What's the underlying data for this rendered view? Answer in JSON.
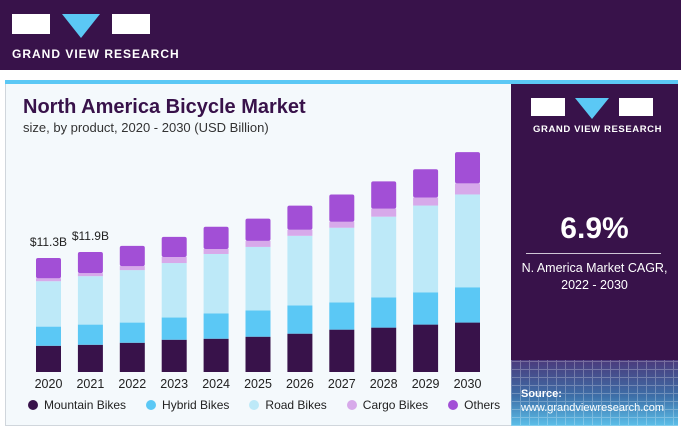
{
  "brand": {
    "name": "GRAND VIEW RESEARCH"
  },
  "header": {
    "title": "North America Bicycle Market",
    "subtitle": "size, by product, 2020 - 2030 (USD Billion)"
  },
  "sidebar": {
    "cagr_value": "6.9%",
    "cagr_label_line1": "N. America Market CAGR,",
    "cagr_label_line2": "2022 - 2030",
    "source_label": "Source:",
    "source_url": "www.grandviewresearch.com"
  },
  "colors": {
    "brand_dark": "#38124a",
    "accent_blue": "#5bc8f5"
  },
  "chart_data": {
    "type": "bar",
    "stacked": true,
    "title": "North America Bicycle Market",
    "subtitle": "size, by product, 2020 - 2030 (USD Billion)",
    "xlabel": "",
    "ylabel": "USD Billion",
    "ylim": [
      0,
      23
    ],
    "grid": false,
    "legend_position": "bottom",
    "categories": [
      "2020",
      "2021",
      "2022",
      "2023",
      "2024",
      "2025",
      "2026",
      "2027",
      "2028",
      "2029",
      "2030"
    ],
    "series": [
      {
        "name": "Mountain Bikes",
        "color": "#38124a",
        "values": [
          2.6,
          2.7,
          2.9,
          3.2,
          3.3,
          3.5,
          3.8,
          4.2,
          4.4,
          4.7,
          4.9
        ]
      },
      {
        "name": "Hybrid Bikes",
        "color": "#5bc8f5",
        "values": [
          1.9,
          2.0,
          2.0,
          2.2,
          2.5,
          2.6,
          2.8,
          2.7,
          3.0,
          3.2,
          3.5
        ]
      },
      {
        "name": "Road Bikes",
        "color": "#bde9f8",
        "values": [
          4.5,
          4.8,
          5.2,
          5.4,
          5.9,
          6.3,
          6.9,
          7.4,
          8.0,
          8.6,
          9.2
        ]
      },
      {
        "name": "Cargo Bikes",
        "color": "#d7a9ea",
        "values": [
          0.3,
          0.3,
          0.4,
          0.6,
          0.5,
          0.6,
          0.6,
          0.6,
          0.8,
          0.8,
          1.1
        ]
      },
      {
        "name": "Others",
        "color": "#a24fd6",
        "values": [
          2.0,
          2.1,
          2.0,
          2.0,
          2.2,
          2.2,
          2.4,
          2.7,
          2.7,
          2.8,
          3.1
        ]
      }
    ],
    "annotations": [
      {
        "category": "2020",
        "text": "$11.3B"
      },
      {
        "category": "2021",
        "text": "$11.9B"
      }
    ]
  }
}
